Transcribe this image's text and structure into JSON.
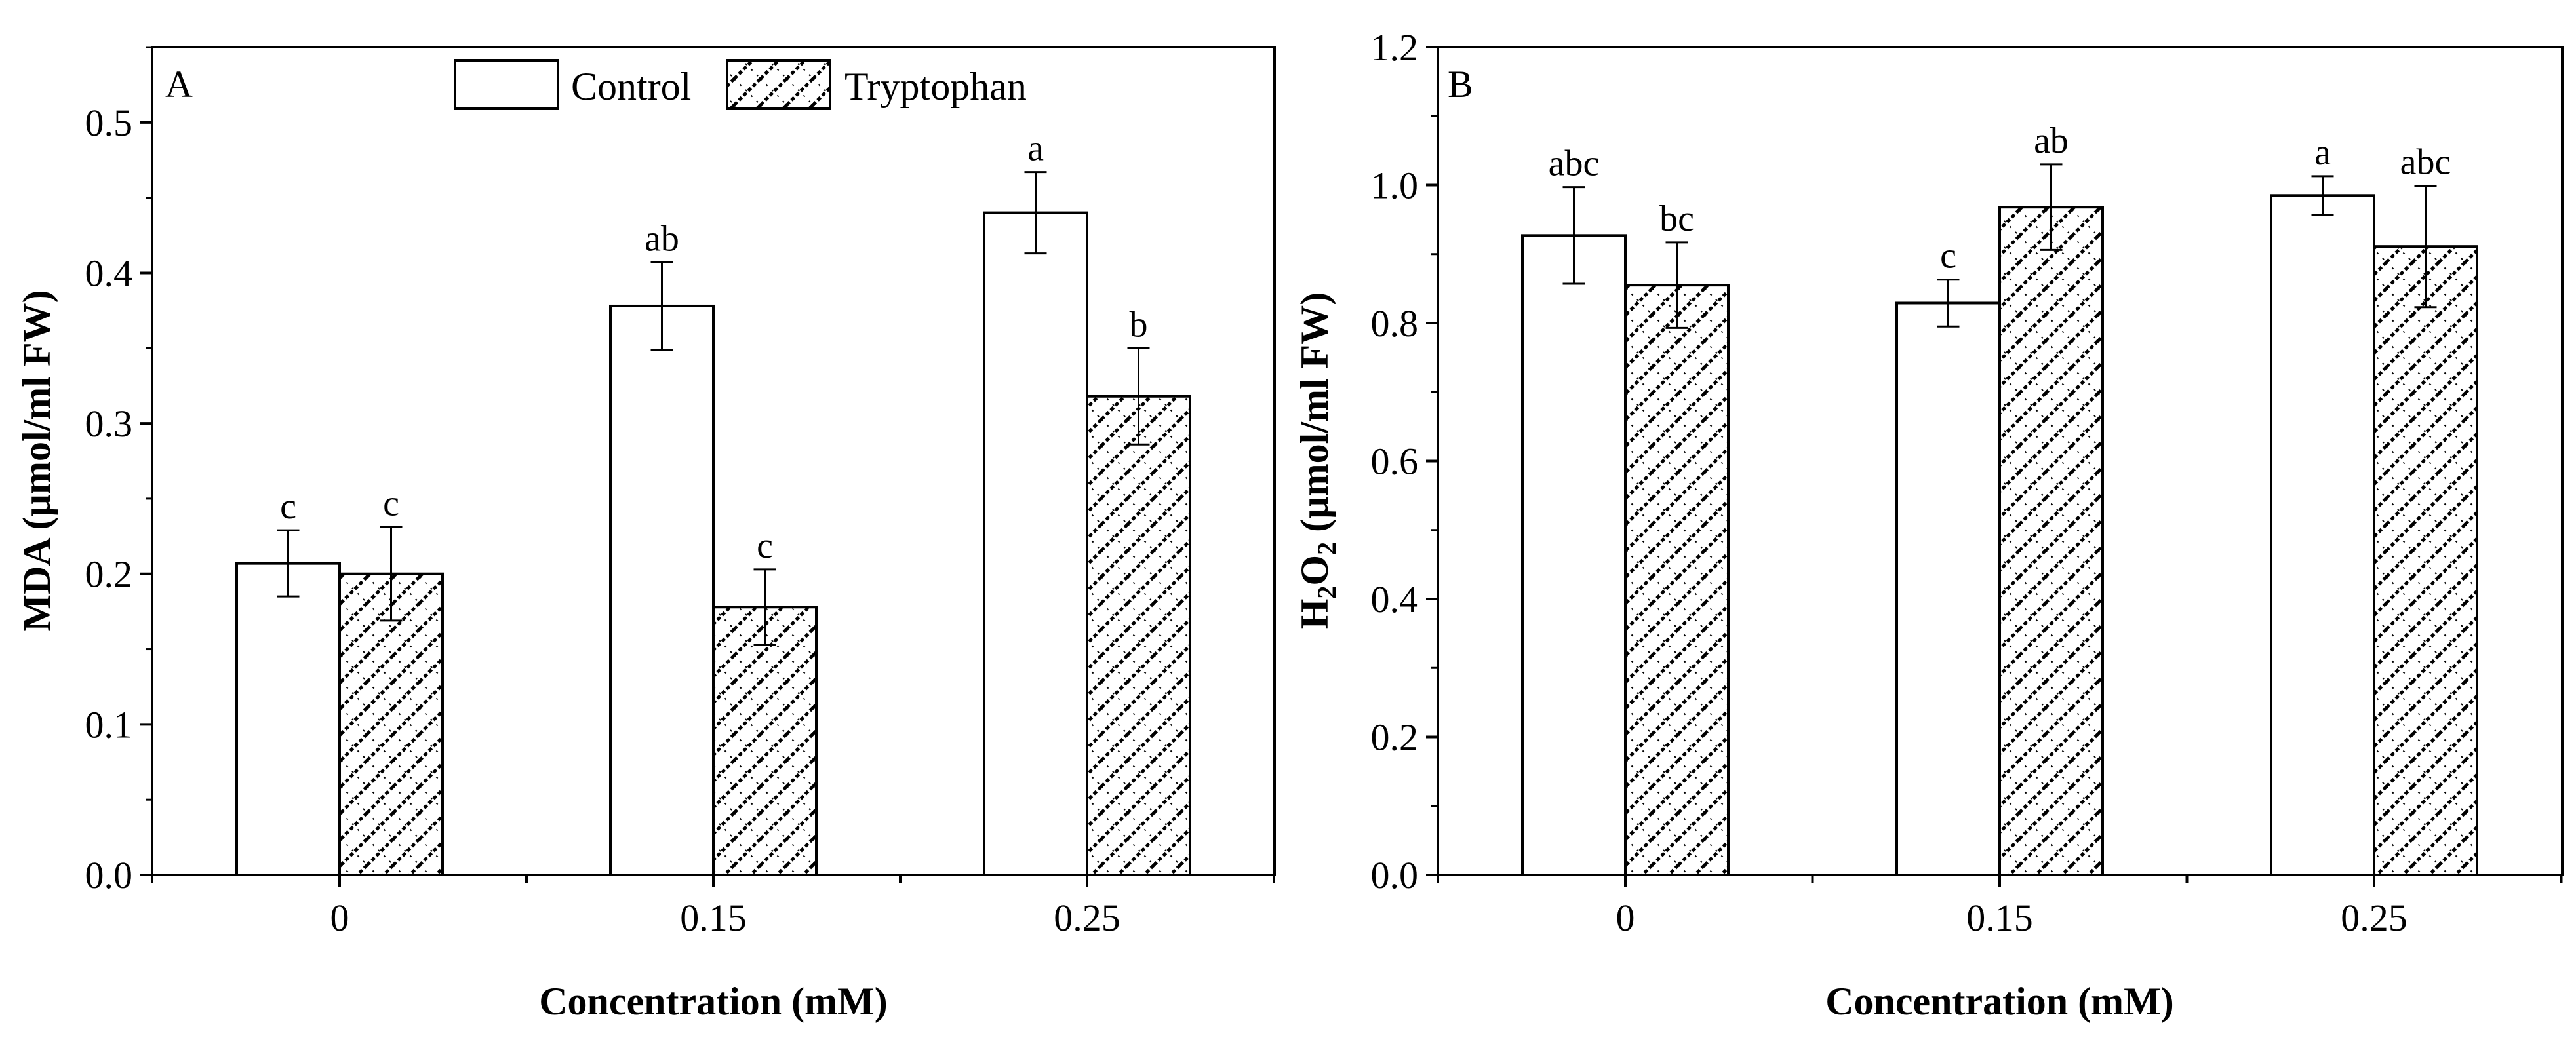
{
  "chart_data": [
    {
      "type": "bar",
      "panel_label": "A",
      "title": "",
      "xlabel": "Concentration (mM)",
      "ylabel": "MDA (µmol/ml FW)",
      "categories": [
        "0",
        "0.15",
        "0.25"
      ],
      "ylim": [
        0,
        0.55
      ],
      "yticks": [
        "0.0",
        "0.1",
        "0.2",
        "0.3",
        "0.4",
        "0.5"
      ],
      "legend": {
        "position": "top-center",
        "entries": [
          "Control",
          "Tryptophan"
        ]
      },
      "series": [
        {
          "name": "Control",
          "pattern": "none",
          "values": [
            0.207,
            0.378,
            0.44
          ],
          "errors": [
            0.022,
            0.029,
            0.027
          ],
          "letters": [
            "c",
            "ab",
            "a"
          ]
        },
        {
          "name": "Tryptophan",
          "pattern": "crosshatch",
          "values": [
            0.2,
            0.178,
            0.318
          ],
          "errors": [
            0.031,
            0.025,
            0.032
          ],
          "letters": [
            "c",
            "c",
            "b"
          ]
        }
      ]
    },
    {
      "type": "bar",
      "panel_label": "B",
      "title": "",
      "xlabel": "Concentration (mM)",
      "ylabel": "H2O2 (µmol/ml FW)",
      "ylabel_parts": {
        "h": "H",
        "sub1": "2",
        "o": "O",
        "sub2": "2",
        "rest": " (µmol/ml FW)"
      },
      "categories": [
        "0",
        "0.15",
        "0.25"
      ],
      "ylim": [
        0,
        1.2
      ],
      "yticks": [
        "0.0",
        "0.2",
        "0.4",
        "0.6",
        "0.8",
        "1.0",
        "1.2"
      ],
      "series": [
        {
          "name": "Control",
          "pattern": "none",
          "values": [
            0.927,
            0.829,
            0.985
          ],
          "errors": [
            0.07,
            0.034,
            0.028
          ],
          "letters": [
            "abc",
            "c",
            "a"
          ]
        },
        {
          "name": "Tryptophan",
          "pattern": "crosshatch",
          "values": [
            0.855,
            0.968,
            0.911
          ],
          "errors": [
            0.062,
            0.062,
            0.088
          ],
          "letters": [
            "bc",
            "ab",
            "abc"
          ]
        }
      ]
    }
  ]
}
